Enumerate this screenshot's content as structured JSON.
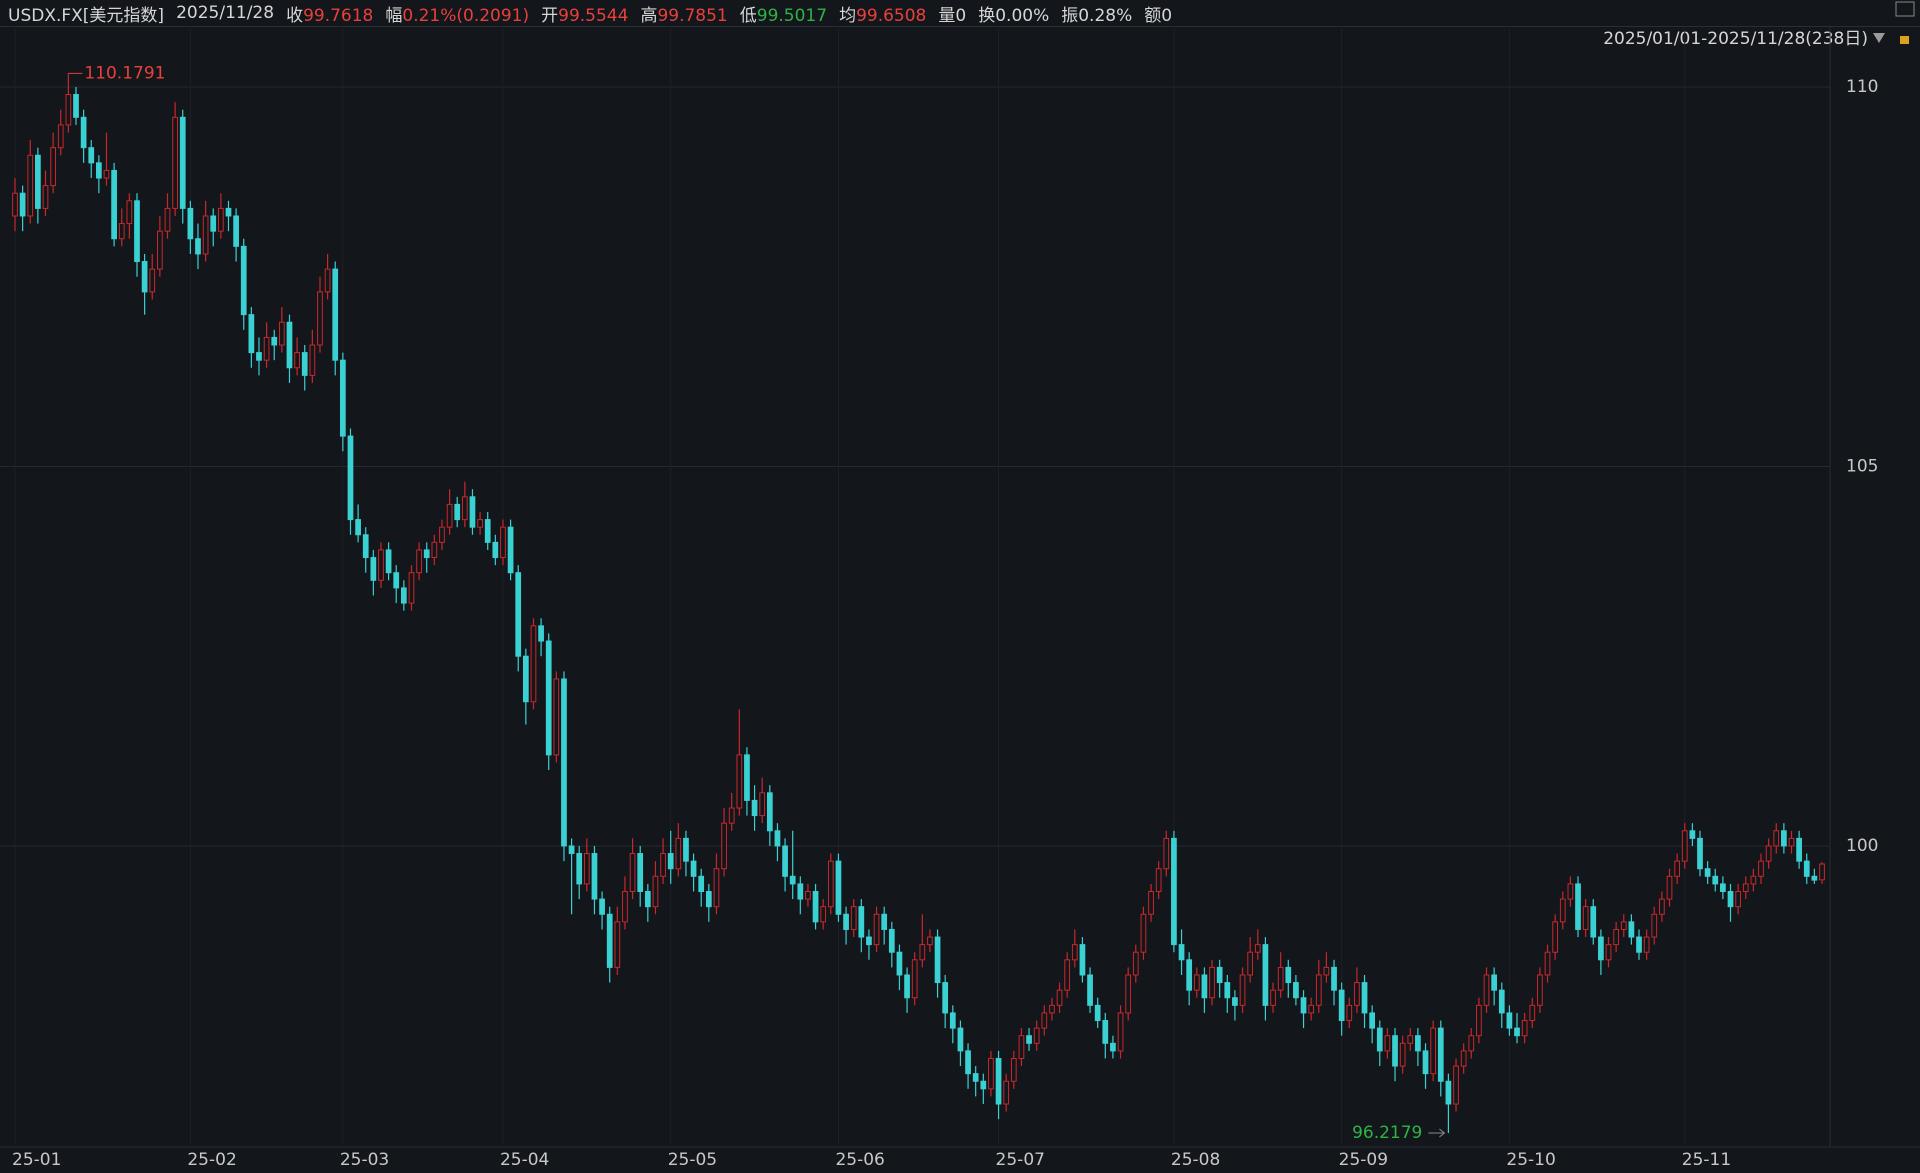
{
  "chart_data": {
    "type": "candlestick",
    "quote": [
      {
        "label": "USDX.FX[美元指数]"
      },
      {
        "label": "2025/11/28"
      },
      {
        "label": "收",
        "value": 99.7618,
        "color": "#e8413b"
      },
      {
        "label": "幅",
        "value": "0.21%(0.2091)",
        "color": "#e8413b"
      },
      {
        "label": "开",
        "value": 99.5544,
        "color": "#e8413b"
      },
      {
        "label": "高",
        "value": 99.7851,
        "color": "#e8413b"
      },
      {
        "label": "低",
        "value": 99.5017,
        "color": "#2fb344"
      },
      {
        "label": "均",
        "value": 99.6508,
        "color": "#e8413b"
      },
      {
        "label": "量0"
      },
      {
        "label": "换0.00%"
      },
      {
        "label": "振0.28%"
      },
      {
        "label": "额0"
      }
    ],
    "range_label": "2025/01/01-2025/11/28(238日)",
    "max_label": 110.1791,
    "min_label": 96.2179,
    "up_color": "#c8282b",
    "down_color": "#3ad1d3",
    "ylim": [
      96.06,
      110.5
    ],
    "yticks": [
      100,
      105,
      110
    ],
    "grid": true,
    "xticks": [
      {
        "value": 0,
        "label": "25-01"
      },
      {
        "value": 23,
        "label": "25-02"
      },
      {
        "value": 43,
        "label": "25-03"
      },
      {
        "value": 64,
        "label": "25-04"
      },
      {
        "value": 86,
        "label": "25-05"
      },
      {
        "value": 108,
        "label": "25-06"
      },
      {
        "value": 129,
        "label": "25-07"
      },
      {
        "value": 152,
        "label": "25-08"
      },
      {
        "value": 174,
        "label": "25-09"
      },
      {
        "value": 196,
        "label": "25-10"
      },
      {
        "value": 219,
        "label": "25-11"
      }
    ],
    "candles": [
      [
        108.3,
        108.8,
        108.1,
        108.6
      ],
      [
        108.6,
        108.7,
        108.1,
        108.3
      ],
      [
        108.3,
        109.3,
        108.2,
        109.1
      ],
      [
        109.1,
        109.2,
        108.2,
        108.4
      ],
      [
        108.4,
        108.9,
        108.3,
        108.7
      ],
      [
        108.7,
        109.4,
        108.6,
        109.2
      ],
      [
        109.2,
        109.7,
        109.1,
        109.5
      ],
      [
        109.5,
        110.1791,
        109.4,
        109.9
      ],
      [
        109.9,
        110.0,
        109.5,
        109.6
      ],
      [
        109.6,
        109.7,
        109.0,
        109.2
      ],
      [
        109.2,
        109.3,
        108.8,
        109.0
      ],
      [
        109.0,
        109.1,
        108.6,
        108.8
      ],
      [
        108.8,
        109.4,
        108.7,
        108.9
      ],
      [
        108.9,
        109.0,
        107.9,
        108.0
      ],
      [
        108.0,
        108.4,
        107.9,
        108.2
      ],
      [
        108.2,
        108.6,
        108.0,
        108.5
      ],
      [
        108.5,
        108.6,
        107.5,
        107.7
      ],
      [
        107.7,
        107.8,
        107.0,
        107.3
      ],
      [
        107.3,
        107.8,
        107.2,
        107.6
      ],
      [
        107.6,
        108.3,
        107.5,
        108.1
      ],
      [
        108.1,
        108.6,
        108.0,
        108.4
      ],
      [
        108.4,
        109.8,
        108.3,
        109.6
      ],
      [
        109.6,
        109.7,
        108.2,
        108.4
      ],
      [
        108.4,
        108.5,
        107.8,
        108.0
      ],
      [
        108.0,
        108.2,
        107.6,
        107.8
      ],
      [
        107.8,
        108.5,
        107.7,
        108.3
      ],
      [
        108.3,
        108.4,
        107.9,
        108.1
      ],
      [
        108.1,
        108.6,
        108.0,
        108.4
      ],
      [
        108.4,
        108.5,
        108.1,
        108.3
      ],
      [
        108.3,
        108.4,
        107.7,
        107.9
      ],
      [
        107.9,
        108.0,
        106.8,
        107.0
      ],
      [
        107.0,
        107.1,
        106.3,
        106.5
      ],
      [
        106.5,
        106.7,
        106.2,
        106.4
      ],
      [
        106.4,
        106.9,
        106.3,
        106.7
      ],
      [
        106.7,
        106.8,
        106.4,
        106.6
      ],
      [
        106.6,
        107.1,
        106.5,
        106.9
      ],
      [
        106.9,
        107.0,
        106.1,
        106.3
      ],
      [
        106.3,
        106.7,
        106.2,
        106.5
      ],
      [
        106.5,
        106.6,
        106.0,
        106.2
      ],
      [
        106.2,
        106.8,
        106.1,
        106.6
      ],
      [
        106.6,
        107.5,
        106.5,
        107.3
      ],
      [
        107.3,
        107.8,
        107.2,
        107.6
      ],
      [
        107.6,
        107.7,
        106.2,
        106.4
      ],
      [
        106.4,
        106.5,
        105.2,
        105.4
      ],
      [
        105.4,
        105.5,
        104.1,
        104.3
      ],
      [
        104.3,
        104.5,
        104.0,
        104.1
      ],
      [
        104.1,
        104.2,
        103.6,
        103.8
      ],
      [
        103.8,
        103.9,
        103.3,
        103.5
      ],
      [
        103.5,
        104.0,
        103.4,
        103.9
      ],
      [
        103.9,
        104.0,
        103.5,
        103.6
      ],
      [
        103.6,
        103.7,
        103.2,
        103.4
      ],
      [
        103.4,
        103.5,
        103.1,
        103.2
      ],
      [
        103.2,
        103.7,
        103.1,
        103.6
      ],
      [
        103.6,
        104.0,
        103.5,
        103.9
      ],
      [
        103.9,
        104.0,
        103.6,
        103.8
      ],
      [
        103.8,
        104.1,
        103.7,
        104.0
      ],
      [
        104.0,
        104.3,
        103.9,
        104.2
      ],
      [
        104.2,
        104.7,
        104.1,
        104.5
      ],
      [
        104.5,
        104.6,
        104.2,
        104.3
      ],
      [
        104.3,
        104.8,
        104.2,
        104.6
      ],
      [
        104.6,
        104.7,
        104.1,
        104.2
      ],
      [
        104.2,
        104.4,
        104.1,
        104.3
      ],
      [
        104.3,
        104.4,
        103.9,
        104.0
      ],
      [
        104.0,
        104.1,
        103.7,
        103.8
      ],
      [
        103.8,
        104.3,
        103.7,
        104.2
      ],
      [
        104.2,
        104.3,
        103.5,
        103.6
      ],
      [
        103.6,
        103.7,
        102.3,
        102.5
      ],
      [
        102.5,
        102.6,
        101.6,
        101.9
      ],
      [
        101.9,
        103.0,
        101.8,
        102.9
      ],
      [
        102.9,
        103.0,
        102.5,
        102.7
      ],
      [
        102.7,
        102.8,
        101.0,
        101.2
      ],
      [
        101.2,
        102.3,
        101.1,
        102.2
      ],
      [
        102.2,
        102.3,
        99.8,
        100.0
      ],
      [
        100.0,
        100.1,
        99.1,
        99.9
      ],
      [
        99.9,
        100.0,
        99.3,
        99.5
      ],
      [
        99.5,
        100.1,
        99.4,
        99.9
      ],
      [
        99.9,
        100.0,
        99.1,
        99.3
      ],
      [
        99.3,
        99.4,
        98.9,
        99.1
      ],
      [
        99.1,
        99.2,
        98.2,
        98.4
      ],
      [
        98.4,
        99.2,
        98.3,
        99.0
      ],
      [
        99.0,
        99.6,
        98.9,
        99.4
      ],
      [
        99.4,
        100.1,
        99.3,
        99.9
      ],
      [
        99.9,
        100.0,
        99.2,
        99.4
      ],
      [
        99.4,
        99.5,
        99.0,
        99.2
      ],
      [
        99.2,
        99.8,
        99.1,
        99.6
      ],
      [
        99.6,
        100.1,
        99.5,
        99.9
      ],
      [
        99.9,
        100.2,
        99.5,
        99.7
      ],
      [
        99.7,
        100.3,
        99.6,
        100.1
      ],
      [
        100.1,
        100.2,
        99.6,
        99.8
      ],
      [
        99.8,
        99.9,
        99.4,
        99.6
      ],
      [
        99.6,
        99.7,
        99.2,
        99.4
      ],
      [
        99.4,
        99.5,
        99.0,
        99.2
      ],
      [
        99.2,
        99.9,
        99.1,
        99.7
      ],
      [
        99.7,
        100.5,
        99.6,
        100.3
      ],
      [
        100.3,
        100.7,
        100.2,
        100.5
      ],
      [
        100.5,
        101.8,
        100.4,
        101.2
      ],
      [
        101.2,
        101.3,
        100.4,
        100.6
      ],
      [
        100.6,
        100.8,
        100.2,
        100.4
      ],
      [
        100.4,
        100.9,
        100.3,
        100.7
      ],
      [
        100.7,
        100.8,
        100.0,
        100.2
      ],
      [
        100.2,
        100.3,
        99.8,
        100.0
      ],
      [
        100.0,
        100.1,
        99.4,
        99.6
      ],
      [
        99.6,
        100.2,
        99.3,
        99.5
      ],
      [
        99.5,
        99.6,
        99.1,
        99.3
      ],
      [
        99.3,
        99.5,
        99.2,
        99.4
      ],
      [
        99.4,
        99.5,
        98.9,
        99.0
      ],
      [
        99.0,
        99.3,
        98.9,
        99.2
      ],
      [
        99.2,
        99.9,
        99.1,
        99.8
      ],
      [
        99.8,
        99.9,
        99.0,
        99.1
      ],
      [
        99.1,
        99.2,
        98.7,
        98.9
      ],
      [
        98.9,
        99.3,
        98.8,
        99.2
      ],
      [
        99.2,
        99.3,
        98.6,
        98.8
      ],
      [
        98.8,
        98.9,
        98.5,
        98.7
      ],
      [
        98.7,
        99.2,
        98.6,
        99.1
      ],
      [
        99.1,
        99.2,
        98.7,
        98.9
      ],
      [
        98.9,
        99.0,
        98.4,
        98.6
      ],
      [
        98.6,
        98.7,
        98.1,
        98.3
      ],
      [
        98.3,
        98.4,
        97.8,
        98.0
      ],
      [
        98.0,
        98.6,
        97.9,
        98.5
      ],
      [
        98.5,
        99.1,
        98.4,
        98.7
      ],
      [
        98.7,
        98.9,
        98.6,
        98.8
      ],
      [
        98.8,
        98.9,
        98.0,
        98.2
      ],
      [
        98.2,
        98.3,
        97.6,
        97.8
      ],
      [
        97.8,
        97.9,
        97.4,
        97.6
      ],
      [
        97.6,
        97.7,
        97.1,
        97.3
      ],
      [
        97.3,
        97.4,
        96.8,
        97.0
      ],
      [
        97.0,
        97.1,
        96.7,
        96.9
      ],
      [
        96.9,
        97.0,
        96.6,
        96.8
      ],
      [
        96.8,
        97.3,
        96.7,
        97.2
      ],
      [
        97.2,
        97.3,
        96.4,
        96.6
      ],
      [
        96.6,
        97.0,
        96.5,
        96.9
      ],
      [
        96.9,
        97.3,
        96.8,
        97.2
      ],
      [
        97.2,
        97.6,
        97.1,
        97.5
      ],
      [
        97.5,
        97.6,
        97.3,
        97.4
      ],
      [
        97.4,
        97.7,
        97.3,
        97.6
      ],
      [
        97.6,
        97.9,
        97.5,
        97.8
      ],
      [
        97.8,
        98.0,
        97.7,
        97.9
      ],
      [
        97.9,
        98.2,
        97.8,
        98.1
      ],
      [
        98.1,
        98.6,
        98.0,
        98.5
      ],
      [
        98.5,
        98.9,
        98.4,
        98.7
      ],
      [
        98.7,
        98.8,
        98.2,
        98.3
      ],
      [
        98.3,
        98.4,
        97.8,
        97.9
      ],
      [
        97.9,
        98.0,
        97.6,
        97.7
      ],
      [
        97.7,
        97.8,
        97.2,
        97.4
      ],
      [
        97.4,
        97.5,
        97.2,
        97.3
      ],
      [
        97.3,
        97.9,
        97.2,
        97.8
      ],
      [
        97.8,
        98.4,
        97.7,
        98.3
      ],
      [
        98.3,
        98.7,
        98.2,
        98.6
      ],
      [
        98.6,
        99.2,
        98.5,
        99.1
      ],
      [
        99.1,
        99.5,
        99.0,
        99.4
      ],
      [
        99.4,
        99.8,
        99.3,
        99.7
      ],
      [
        99.7,
        100.2,
        99.6,
        100.1
      ],
      [
        100.1,
        100.2,
        98.6,
        98.7
      ],
      [
        98.7,
        98.9,
        98.3,
        98.5
      ],
      [
        98.5,
        98.6,
        97.9,
        98.1
      ],
      [
        98.1,
        98.4,
        98.0,
        98.3
      ],
      [
        98.3,
        98.4,
        97.8,
        98.0
      ],
      [
        98.0,
        98.5,
        97.9,
        98.4
      ],
      [
        98.4,
        98.5,
        98.0,
        98.2
      ],
      [
        98.2,
        98.3,
        97.8,
        98.0
      ],
      [
        98.0,
        98.1,
        97.7,
        97.9
      ],
      [
        97.9,
        98.4,
        97.8,
        98.3
      ],
      [
        98.3,
        98.8,
        98.2,
        98.6
      ],
      [
        98.6,
        98.9,
        98.5,
        98.7
      ],
      [
        98.7,
        98.8,
        97.7,
        97.9
      ],
      [
        97.9,
        98.2,
        97.8,
        98.1
      ],
      [
        98.1,
        98.6,
        98.0,
        98.4
      ],
      [
        98.4,
        98.5,
        98.0,
        98.2
      ],
      [
        98.2,
        98.3,
        97.9,
        98.0
      ],
      [
        98.0,
        98.1,
        97.6,
        97.8
      ],
      [
        97.8,
        98.0,
        97.7,
        97.9
      ],
      [
        97.9,
        98.5,
        97.8,
        98.3
      ],
      [
        98.3,
        98.6,
        98.2,
        98.4
      ],
      [
        98.4,
        98.5,
        97.9,
        98.1
      ],
      [
        98.1,
        98.2,
        97.5,
        97.7
      ],
      [
        97.7,
        98.0,
        97.6,
        97.9
      ],
      [
        97.9,
        98.4,
        97.8,
        98.2
      ],
      [
        98.2,
        98.3,
        97.6,
        97.8
      ],
      [
        97.8,
        97.9,
        97.4,
        97.6
      ],
      [
        97.6,
        97.7,
        97.1,
        97.3
      ],
      [
        97.3,
        97.6,
        97.2,
        97.5
      ],
      [
        97.5,
        97.6,
        96.9,
        97.1
      ],
      [
        97.1,
        97.5,
        97.0,
        97.4
      ],
      [
        97.4,
        97.6,
        97.3,
        97.5
      ],
      [
        97.5,
        97.6,
        97.1,
        97.3
      ],
      [
        97.3,
        97.4,
        96.8,
        97.0
      ],
      [
        97.0,
        97.7,
        96.9,
        97.6
      ],
      [
        97.6,
        97.7,
        96.7,
        96.9
      ],
      [
        96.9,
        97.0,
        96.2179,
        96.6
      ],
      [
        96.6,
        97.2,
        96.5,
        97.1
      ],
      [
        97.1,
        97.4,
        97.0,
        97.3
      ],
      [
        97.3,
        97.6,
        97.2,
        97.5
      ],
      [
        97.5,
        98.0,
        97.4,
        97.9
      ],
      [
        97.9,
        98.4,
        97.8,
        98.3
      ],
      [
        98.3,
        98.4,
        97.9,
        98.1
      ],
      [
        98.1,
        98.2,
        97.6,
        97.8
      ],
      [
        97.8,
        97.9,
        97.5,
        97.6
      ],
      [
        97.6,
        97.8,
        97.4,
        97.5
      ],
      [
        97.5,
        97.8,
        97.4,
        97.7
      ],
      [
        97.7,
        98.0,
        97.6,
        97.9
      ],
      [
        97.9,
        98.4,
        97.8,
        98.3
      ],
      [
        98.3,
        98.7,
        98.2,
        98.6
      ],
      [
        98.6,
        99.1,
        98.5,
        99.0
      ],
      [
        99.0,
        99.4,
        98.9,
        99.3
      ],
      [
        99.3,
        99.6,
        99.2,
        99.5
      ],
      [
        99.5,
        99.6,
        98.8,
        98.9
      ],
      [
        98.9,
        99.3,
        98.8,
        99.2
      ],
      [
        99.2,
        99.3,
        98.7,
        98.8
      ],
      [
        98.8,
        98.9,
        98.3,
        98.5
      ],
      [
        98.5,
        98.8,
        98.4,
        98.7
      ],
      [
        98.7,
        99.0,
        98.6,
        98.9
      ],
      [
        98.9,
        99.1,
        98.8,
        99.0
      ],
      [
        99.0,
        99.1,
        98.7,
        98.8
      ],
      [
        98.8,
        98.9,
        98.5,
        98.6
      ],
      [
        98.6,
        98.9,
        98.5,
        98.8
      ],
      [
        98.8,
        99.2,
        98.7,
        99.1
      ],
      [
        99.1,
        99.4,
        99.0,
        99.3
      ],
      [
        99.3,
        99.7,
        99.2,
        99.6
      ],
      [
        99.6,
        99.9,
        99.5,
        99.8
      ],
      [
        99.8,
        100.3,
        99.7,
        100.2
      ],
      [
        100.2,
        100.3,
        100.0,
        100.1
      ],
      [
        100.1,
        100.2,
        99.6,
        99.7
      ],
      [
        99.7,
        99.8,
        99.5,
        99.6
      ],
      [
        99.6,
        99.7,
        99.4,
        99.5
      ],
      [
        99.5,
        99.6,
        99.3,
        99.4
      ],
      [
        99.4,
        99.5,
        99.0,
        99.2
      ],
      [
        99.2,
        99.5,
        99.1,
        99.4
      ],
      [
        99.4,
        99.6,
        99.3,
        99.5
      ],
      [
        99.5,
        99.7,
        99.4,
        99.6
      ],
      [
        99.6,
        99.9,
        99.5,
        99.8
      ],
      [
        99.8,
        100.1,
        99.7,
        100.0
      ],
      [
        100.0,
        100.3,
        99.9,
        100.2
      ],
      [
        100.2,
        100.3,
        99.9,
        100.0
      ],
      [
        100.0,
        100.2,
        99.9,
        100.1
      ],
      [
        100.1,
        100.2,
        99.7,
        99.8
      ],
      [
        99.8,
        99.9,
        99.5,
        99.6
      ],
      [
        99.6,
        99.7,
        99.5,
        99.55
      ],
      [
        99.5544,
        99.7851,
        99.5017,
        99.7618
      ]
    ]
  }
}
